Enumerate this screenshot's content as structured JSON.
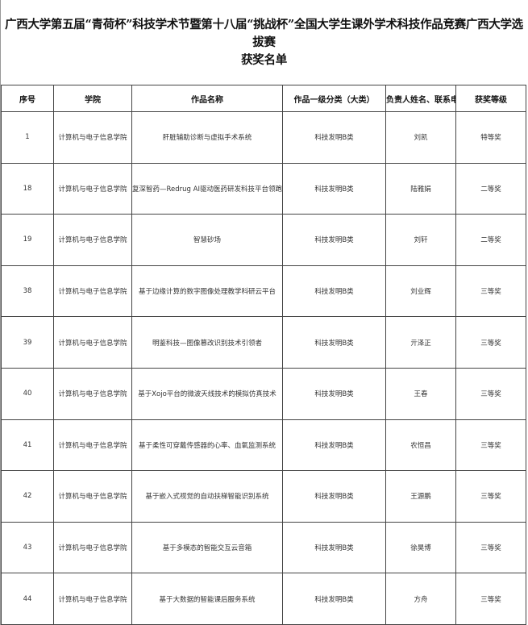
{
  "title_line1": "广西大学第五届“青荷杯”科技学术节暨第十八届“挑战杯”全国大学生课外学术科技作品竞赛广西大学选拔赛",
  "title_line2": "获奖名单",
  "columns": [
    "序号",
    "学院",
    "作品名称",
    "作品一级分类（大类）",
    "负责人姓名、联系电",
    "获奖等级"
  ],
  "rows": [
    {
      "no": "1",
      "college": "计算机与电子信息学院",
      "work": "肝脏辅助诊断与虚拟手术系统",
      "category": "科技发明B类",
      "leader": "刘凯",
      "award": "特等奖"
    },
    {
      "no": "18",
      "college": "计算机与电子信息学院",
      "work": "复深智药—Redrug AI驱动医药研发科技平台领跑者",
      "category": "科技发明B类",
      "leader": "陆雅娟",
      "award": "二等奖"
    },
    {
      "no": "19",
      "college": "计算机与电子信息学院",
      "work": "智慧砂场",
      "category": "科技发明B类",
      "leader": "刘轩",
      "award": "二等奖"
    },
    {
      "no": "38",
      "college": "计算机与电子信息学院",
      "work": "基于边缘计算的数字图像处理教学科研云平台",
      "category": "科技发明B类",
      "leader": "刘业辉",
      "award": "三等奖"
    },
    {
      "no": "39",
      "college": "计算机与电子信息学院",
      "work": "明鉴科技—图像篡改识别技术引领者",
      "category": "科技发明B类",
      "leader": "亓泽正",
      "award": "三等奖"
    },
    {
      "no": "40",
      "college": "计算机与电子信息学院",
      "work": "基于Xojo平台的微波天线技术的模拟仿真技术",
      "category": "科技发明B类",
      "leader": "王春",
      "award": "三等奖"
    },
    {
      "no": "41",
      "college": "计算机与电子信息学院",
      "work": "基于柔性可穿戴传感器的心率、血氧监测系统",
      "category": "科技发明B类",
      "leader": "农恒昌",
      "award": "三等奖"
    },
    {
      "no": "42",
      "college": "计算机与电子信息学院",
      "work": "基于嵌入式视觉的自动扶梯智能识别系统",
      "category": "科技发明B类",
      "leader": "王源鹏",
      "award": "三等奖"
    },
    {
      "no": "43",
      "college": "计算机与电子信息学院",
      "work": "基于多模态的智能交互云音箱",
      "category": "科技发明B类",
      "leader": "徐昊博",
      "award": "三等奖"
    },
    {
      "no": "44",
      "college": "计算机与电子信息学院",
      "work": "基于大数据的智能课后服务系统",
      "category": "科技发明B类",
      "leader": "方舟",
      "award": "三等奖"
    }
  ]
}
